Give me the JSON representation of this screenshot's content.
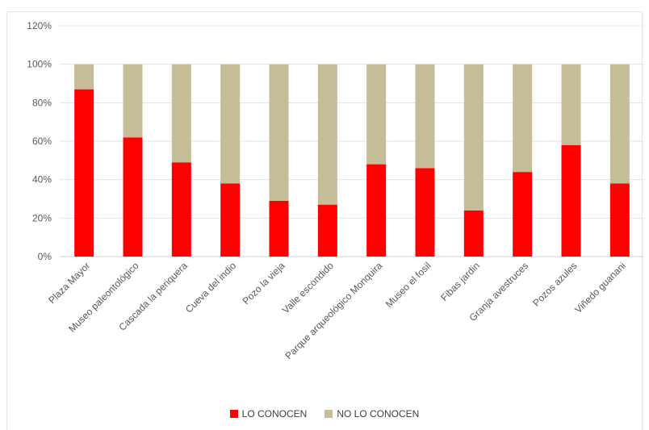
{
  "chart_data": {
    "type": "bar",
    "stacked": true,
    "categories": [
      "Plaza Mayor",
      "Museo paleontológico",
      "Cascada la periquera",
      "Cueva del indio",
      "Pozo la vieja",
      "Valle escondido",
      "Parque arqueológico Monquira",
      "Museo el fosil",
      "Fibas jardin",
      "Granja avestruces",
      "Pozos azules",
      "Viñedo guanani"
    ],
    "series": [
      {
        "name": "LO CONOCEN",
        "color": "#ff0000",
        "values": [
          87,
          62,
          49,
          38,
          29,
          27,
          48,
          46,
          24,
          44,
          58,
          38
        ]
      },
      {
        "name": "NO LO CONOCEN",
        "color": "#c4bd97",
        "values": [
          13,
          38,
          51,
          62,
          71,
          73,
          52,
          54,
          76,
          56,
          42,
          62
        ]
      }
    ],
    "ylim": [
      0,
      120
    ],
    "yticks": [
      "0%",
      "20%",
      "40%",
      "60%",
      "80%",
      "100%",
      "120%"
    ],
    "grid": true,
    "legend_position": "bottom"
  }
}
